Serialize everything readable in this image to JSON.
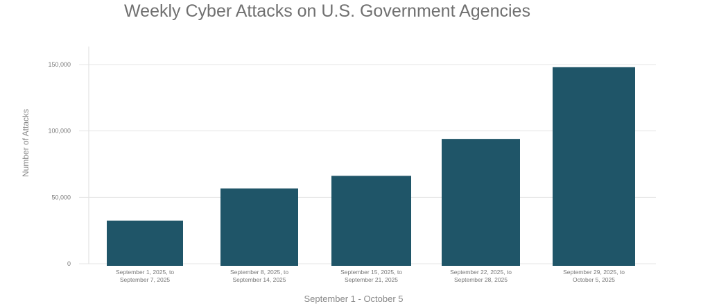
{
  "chart_data": {
    "type": "bar",
    "title": "Weekly Cyber Attacks on U.S. Government Agencies",
    "xlabel": "September 1 - October 5",
    "ylabel": "Number of Attacks",
    "categories": [
      [
        "September 1, 2025, to",
        "September 7, 2025"
      ],
      [
        "September 8, 2025, to",
        "September 14, 2025"
      ],
      [
        "September 15, 2025, to",
        "September 21, 2025"
      ],
      [
        "September 22, 2025, to",
        "September 28, 2025"
      ],
      [
        "September 29, 2025, to",
        "October 5, 2025"
      ]
    ],
    "values": [
      32500,
      56700,
      66200,
      94000,
      148000
    ],
    "yticks": [
      "0",
      "50,000",
      "100,000",
      "150,000"
    ],
    "ytick_values": [
      0,
      50000,
      100000,
      150000
    ],
    "ylim": [
      0,
      150000
    ],
    "grid": true,
    "bar_color": "#1f5568"
  }
}
